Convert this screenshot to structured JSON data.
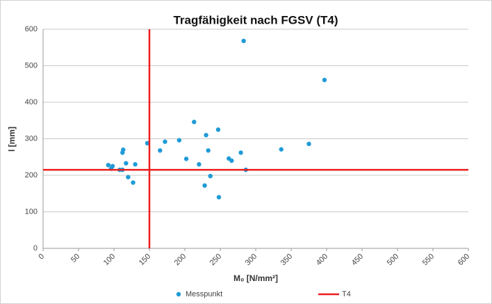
{
  "chart_data": {
    "type": "scatter",
    "title": "Tragfähigkeit nach FGSV (T4)",
    "x_label": "M₀ [N/mm²]",
    "y_label": "l [mm]",
    "xlim": [
      0,
      600
    ],
    "xticks": [
      0,
      50,
      100,
      150,
      200,
      250,
      300,
      350,
      400,
      450,
      500,
      550,
      600
    ],
    "ylim": [
      0,
      600
    ],
    "yticks": [
      0,
      100,
      200,
      300,
      400,
      500,
      600
    ],
    "grid": true,
    "series": [
      {
        "name": "Messpunkt",
        "color": "#1f9bd7",
        "x": [
          92,
          96,
          98,
          108,
          112,
          113,
          112,
          117,
          120,
          127,
          130,
          147,
          165,
          172,
          192,
          202,
          213,
          220,
          228,
          230,
          233,
          236,
          247,
          248,
          262,
          266,
          279,
          283,
          286,
          336,
          375,
          397
        ],
        "values": [
          228,
          218,
          225,
          215,
          262,
          270,
          215,
          233,
          195,
          180,
          230,
          288,
          268,
          292,
          296,
          245,
          346,
          230,
          172,
          310,
          268,
          198,
          325,
          140,
          246,
          240,
          262,
          568,
          215,
          271,
          286,
          461
        ]
      }
    ],
    "reference_line": {
      "name": "T4",
      "color": "#ee1c1c",
      "x": 150,
      "y": 215
    }
  }
}
